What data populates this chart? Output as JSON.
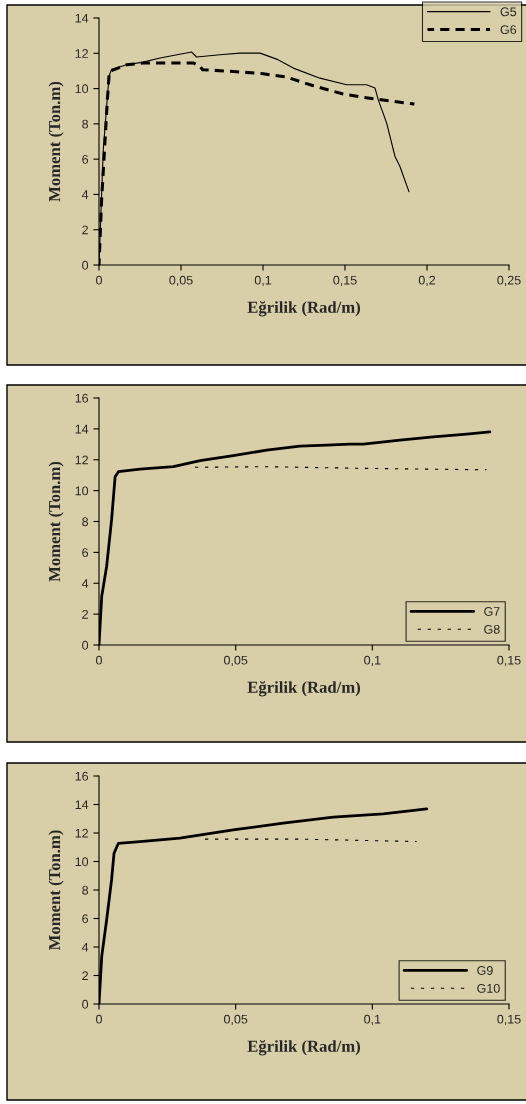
{
  "chart_data": [
    {
      "type": "line",
      "xlabel": "Eğrilik (Rad/m)",
      "ylabel": "Moment (Ton.m)",
      "xlim": [
        0,
        0.25
      ],
      "ylim": [
        0,
        14
      ],
      "xticks": [
        0,
        {
          "value": 0.05,
          "label": "0,05"
        },
        {
          "value": 0.1,
          "label": "0,1"
        },
        {
          "value": 0.15,
          "label": "0,15"
        },
        {
          "value": 0.2,
          "label": "0,2"
        },
        {
          "value": 0.25,
          "label": "0,25"
        }
      ],
      "yticks": [
        0,
        2,
        4,
        6,
        8,
        10,
        12,
        14
      ],
      "grid": false,
      "legend": "top right",
      "series": [
        {
          "name": "G5",
          "color": "#000000",
          "line_style": "solid",
          "x": [
            0,
            0.0026,
            0.0061,
            0.0077,
            0.0169,
            0.027,
            0.0372,
            0.0565,
            0.0595,
            0.0738,
            0.086,
            0.0982,
            0.1083,
            0.1185,
            0.1347,
            0.151,
            0.1632,
            0.1683,
            0.1703,
            0.1754,
            0.1805,
            0.1835,
            0.189
          ],
          "values": [
            0,
            6.5,
            10.7,
            11.1,
            11.35,
            11.5,
            11.73,
            12.07,
            11.79,
            11.92,
            12.01,
            12.01,
            11.67,
            11.16,
            10.59,
            10.22,
            10.22,
            10.03,
            9.36,
            8.04,
            6.15,
            5.58,
            4.16
          ]
        },
        {
          "name": "G6",
          "color": "#000000",
          "line_style": "dashed",
          "x": [
            0,
            0.0016,
            0.0051,
            0.0063,
            0.0169,
            0.027,
            0.0575,
            0.0612,
            0.0632,
            0.0819,
            0.1002,
            0.1144,
            0.1307,
            0.1489,
            0.1673,
            0.1923
          ],
          "values": [
            0,
            3.7,
            9.36,
            10.97,
            11.35,
            11.45,
            11.45,
            11.29,
            11.07,
            10.97,
            10.84,
            10.65,
            10.16,
            9.69,
            9.42,
            9.12
          ]
        }
      ]
    },
    {
      "type": "line",
      "xlabel": "Eğrilik (Rad/m)",
      "ylabel": "Moment (Ton.m)",
      "xlim": [
        0,
        0.15
      ],
      "ylim": [
        0,
        16
      ],
      "xticks": [
        0,
        {
          "value": 0.05,
          "label": "0,05"
        },
        {
          "value": 0.1,
          "label": "0,1"
        },
        {
          "value": 0.15,
          "label": "0,15"
        }
      ],
      "yticks": [
        0,
        2,
        4,
        6,
        8,
        10,
        12,
        14,
        16
      ],
      "grid": false,
      "legend": "bottom right",
      "series": [
        {
          "name": "G7",
          "color": "#000000",
          "line_style": "solid",
          "x": [
            0,
            0.001,
            0.0028,
            0.0046,
            0.0059,
            0.0071,
            0.015,
            0.0272,
            0.037,
            0.0491,
            0.0613,
            0.0735,
            0.0833,
            0.0918,
            0.0967,
            0.1101,
            0.1223,
            0.1345,
            0.143
          ],
          "values": [
            0,
            3.16,
            5.1,
            8.1,
            10.9,
            11.23,
            11.4,
            11.55,
            11.94,
            12.26,
            12.62,
            12.88,
            12.95,
            13.01,
            13.01,
            13.27,
            13.48,
            13.66,
            13.81
          ]
        },
        {
          "name": "G8",
          "color": "#000000",
          "line_style": "dashed",
          "x": [
            0.0327,
            0.0613,
            0.0979,
            0.1418
          ],
          "values": [
            11.51,
            11.55,
            11.44,
            11.35
          ]
        }
      ]
    },
    {
      "type": "line",
      "xlabel": "Eğrilik (Rad/m)",
      "ylabel": "Moment (Ton.m)",
      "xlim": [
        0,
        0.15
      ],
      "ylim": [
        0,
        16
      ],
      "xticks": [
        0,
        {
          "value": 0.05,
          "label": "0,05"
        },
        {
          "value": 0.1,
          "label": "0,1"
        },
        {
          "value": 0.15,
          "label": "0,15"
        }
      ],
      "yticks": [
        0,
        2,
        4,
        6,
        8,
        10,
        12,
        14,
        16
      ],
      "grid": false,
      "legend": "bottom right",
      "series": [
        {
          "name": "G9",
          "color": "#000000",
          "line_style": "solid",
          "x": [
            0,
            0.001,
            0.0028,
            0.0046,
            0.0055,
            0.0071,
            0.015,
            0.0296,
            0.0491,
            0.0674,
            0.0857,
            0.104,
            0.1199
          ],
          "values": [
            0,
            3.34,
            5.91,
            8.71,
            10.58,
            11.28,
            11.4,
            11.64,
            12.22,
            12.69,
            13.11,
            13.34,
            13.69
          ]
        },
        {
          "name": "G10",
          "color": "#000000",
          "line_style": "dashed",
          "x": [
            0.0363,
            0.0735,
            0.1162
          ],
          "values": [
            11.57,
            11.57,
            11.4
          ]
        }
      ]
    }
  ]
}
